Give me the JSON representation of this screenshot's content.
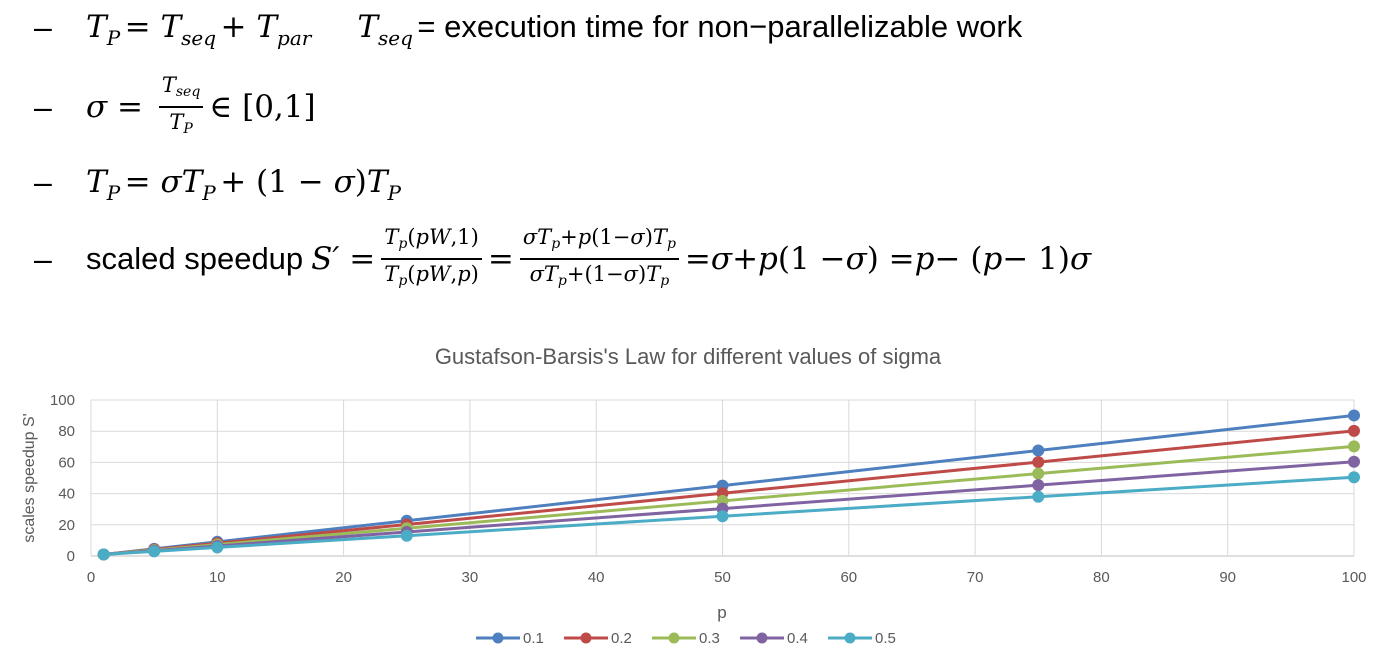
{
  "bullets": {
    "b1": {
      "dash": "–",
      "eq1": "T_P = T_seq + T_par",
      "def_var": "T_seq",
      "def_text": "= execution time for non−parallelizable work"
    },
    "b2": {
      "dash": "–",
      "eq": "σ = T_seq / T_P ∈ [0,1]"
    },
    "b3": {
      "dash": "–",
      "eq": "T_P = σT_P + (1 − σ)T_P"
    },
    "b4": {
      "dash": "–",
      "label": "scaled speedup",
      "eq": "S′ = T_p(pW,1)/T_p(pW,p) = (σT_p+p(1−σ)T_p)/(σT_p+(1−σ)T_p) = σ + p(1 − σ) = p − (p − 1)σ"
    }
  },
  "chart_data": {
    "type": "line",
    "title": "Gustafson-Barsis's Law for different values of sigma",
    "xlabel": "p",
    "ylabel": "scales speedup S'",
    "x": [
      1,
      5,
      10,
      25,
      50,
      75,
      100
    ],
    "xlim": [
      0,
      100
    ],
    "ylim": [
      0,
      100
    ],
    "xticks": [
      0,
      10,
      20,
      30,
      40,
      50,
      60,
      70,
      80,
      90,
      100
    ],
    "yticks": [
      0,
      20,
      40,
      60,
      80,
      100
    ],
    "grid": true,
    "legend_position": "bottom",
    "series": [
      {
        "name": "0.1",
        "color": "#4e7fbe",
        "values": [
          1,
          4.6,
          9.1,
          22.6,
          45.1,
          67.6,
          90.1
        ]
      },
      {
        "name": "0.2",
        "color": "#bf4b49",
        "values": [
          1,
          4.2,
          8.2,
          20.2,
          40.2,
          60.2,
          80.2
        ]
      },
      {
        "name": "0.3",
        "color": "#9bbb59",
        "values": [
          1,
          3.8,
          7.3,
          17.8,
          35.3,
          52.8,
          70.3
        ]
      },
      {
        "name": "0.4",
        "color": "#8064a2",
        "values": [
          1,
          3.4,
          6.4,
          15.4,
          30.4,
          45.4,
          60.4
        ]
      },
      {
        "name": "0.5",
        "color": "#4bacc6",
        "values": [
          1,
          3,
          5.5,
          13,
          25.5,
          38,
          50.5
        ]
      }
    ]
  }
}
